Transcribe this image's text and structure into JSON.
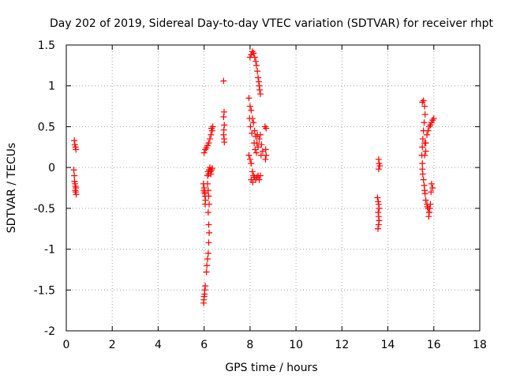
{
  "chart_data": {
    "type": "scatter",
    "title": "Day 202 of 2019, Sidereal Day-to-day VTEC variation (SDTVAR) for receiver rhpt",
    "xlabel": "GPS time / hours",
    "ylabel": "SDTVAR / TECUs",
    "xlim": [
      0,
      18
    ],
    "ylim": [
      -2,
      1.5
    ],
    "xticks": [
      0,
      2,
      4,
      6,
      8,
      10,
      12,
      14,
      16,
      18
    ],
    "yticks": [
      -2,
      -1.5,
      -1,
      -0.5,
      0,
      0.5,
      1,
      1.5
    ],
    "xtick_labels": [
      "0",
      "2",
      "4",
      "6",
      "8",
      "10",
      "12",
      "14",
      "16",
      "18"
    ],
    "ytick_labels": [
      "-2",
      "-1.5",
      "-1",
      "-0.5",
      "0",
      "0.5",
      "1",
      "1.5"
    ],
    "grid": true,
    "marker": "plus",
    "color": "#ff0000",
    "series": [
      {
        "name": "SDTVAR",
        "points": [
          [
            0.35,
            0.33
          ],
          [
            0.37,
            0.28
          ],
          [
            0.4,
            0.25
          ],
          [
            0.42,
            0.22
          ],
          [
            0.33,
            -0.03
          ],
          [
            0.35,
            -0.1
          ],
          [
            0.36,
            -0.17
          ],
          [
            0.38,
            -0.2
          ],
          [
            0.4,
            -0.23
          ],
          [
            0.42,
            -0.25
          ],
          [
            0.39,
            -0.28
          ],
          [
            0.41,
            -0.3
          ],
          [
            0.43,
            -0.33
          ],
          [
            6.0,
            0.18
          ],
          [
            6.05,
            0.22
          ],
          [
            6.1,
            0.24
          ],
          [
            6.15,
            0.27
          ],
          [
            6.2,
            0.3
          ],
          [
            6.25,
            0.35
          ],
          [
            6.3,
            0.4
          ],
          [
            6.35,
            0.45
          ],
          [
            6.32,
            0.48
          ],
          [
            6.38,
            0.5
          ],
          [
            5.97,
            -0.2
          ],
          [
            6.0,
            -0.25
          ],
          [
            6.02,
            -0.3
          ],
          [
            6.04,
            -0.35
          ],
          [
            6.06,
            -0.4
          ],
          [
            6.05,
            -0.45
          ],
          [
            6.03,
            -0.32
          ],
          [
            5.99,
            -0.28
          ],
          [
            6.15,
            -0.1
          ],
          [
            6.18,
            -0.05
          ],
          [
            6.2,
            -0.08
          ],
          [
            6.22,
            -0.03
          ],
          [
            6.25,
            0.0
          ],
          [
            6.28,
            -0.05
          ],
          [
            6.3,
            -0.08
          ],
          [
            6.33,
            -0.03
          ],
          [
            6.35,
            -0.01
          ],
          [
            6.15,
            -0.2
          ],
          [
            6.18,
            -0.28
          ],
          [
            6.2,
            -0.35
          ],
          [
            6.22,
            -0.45
          ],
          [
            6.18,
            -0.55
          ],
          [
            6.2,
            -0.7
          ],
          [
            6.22,
            -0.8
          ],
          [
            6.2,
            -0.92
          ],
          [
            6.18,
            -1.05
          ],
          [
            6.15,
            -1.12
          ],
          [
            6.12,
            -1.2
          ],
          [
            6.1,
            -1.28
          ],
          [
            6.05,
            -1.45
          ],
          [
            6.03,
            -1.5
          ],
          [
            6.02,
            -1.55
          ],
          [
            6.0,
            -1.58
          ],
          [
            5.99,
            -1.62
          ],
          [
            5.98,
            -1.66
          ],
          [
            6.85,
            1.06
          ],
          [
            6.87,
            0.68
          ],
          [
            6.85,
            0.62
          ],
          [
            6.88,
            0.52
          ],
          [
            6.86,
            0.46
          ],
          [
            6.85,
            0.4
          ],
          [
            6.87,
            0.35
          ],
          [
            6.88,
            0.31
          ],
          [
            8.0,
            1.35
          ],
          [
            8.05,
            1.38
          ],
          [
            8.1,
            1.42
          ],
          [
            8.15,
            1.4
          ],
          [
            8.2,
            1.35
          ],
          [
            8.25,
            1.3
          ],
          [
            8.28,
            1.25
          ],
          [
            8.32,
            1.18
          ],
          [
            8.35,
            1.1
          ],
          [
            8.4,
            1.0
          ],
          [
            8.45,
            0.9
          ],
          [
            8.42,
            0.95
          ],
          [
            8.38,
            1.05
          ],
          [
            7.95,
            0.85
          ],
          [
            8.0,
            0.75
          ],
          [
            8.05,
            0.7
          ],
          [
            8.1,
            0.6
          ],
          [
            8.15,
            0.55
          ],
          [
            8.2,
            0.45
          ],
          [
            8.25,
            0.38
          ],
          [
            8.3,
            0.3
          ],
          [
            8.35,
            0.25
          ],
          [
            8.4,
            0.35
          ],
          [
            8.45,
            0.4
          ],
          [
            8.5,
            0.28
          ],
          [
            8.55,
            0.2
          ],
          [
            8.48,
            0.15
          ],
          [
            7.95,
            0.15
          ],
          [
            8.0,
            0.1
          ],
          [
            8.05,
            0.05
          ],
          [
            8.1,
            -0.05
          ],
          [
            8.15,
            -0.1
          ],
          [
            8.2,
            -0.12
          ],
          [
            8.25,
            -0.15
          ],
          [
            8.3,
            -0.12
          ],
          [
            8.35,
            -0.1
          ],
          [
            8.4,
            -0.15
          ],
          [
            8.45,
            -0.1
          ],
          [
            8.05,
            -0.15
          ],
          [
            8.12,
            -0.18
          ],
          [
            7.98,
            0.6
          ],
          [
            8.02,
            0.5
          ],
          [
            8.08,
            0.42
          ],
          [
            8.18,
            0.3
          ],
          [
            8.22,
            0.22
          ],
          [
            8.28,
            0.18
          ],
          [
            8.32,
            0.4
          ],
          [
            8.65,
            0.5
          ],
          [
            8.7,
            0.48
          ],
          [
            8.68,
            0.22
          ],
          [
            8.7,
            0.15
          ],
          [
            8.67,
            0.1
          ],
          [
            13.55,
            -0.37
          ],
          [
            13.58,
            -0.42
          ],
          [
            13.6,
            -0.45
          ],
          [
            13.62,
            -0.5
          ],
          [
            13.58,
            -0.55
          ],
          [
            13.6,
            -0.6
          ],
          [
            13.62,
            -0.65
          ],
          [
            13.6,
            -0.7
          ],
          [
            13.57,
            -0.75
          ],
          [
            13.6,
            0.1
          ],
          [
            13.62,
            0.05
          ],
          [
            13.65,
            0.02
          ],
          [
            13.6,
            -0.02
          ],
          [
            15.5,
            0.8
          ],
          [
            15.55,
            0.82
          ],
          [
            15.6,
            0.75
          ],
          [
            15.62,
            0.65
          ],
          [
            15.58,
            0.55
          ],
          [
            15.55,
            0.45
          ],
          [
            15.52,
            0.35
          ],
          [
            15.5,
            0.25
          ],
          [
            15.48,
            0.15
          ],
          [
            15.5,
            0.05
          ],
          [
            15.5,
            -0.02
          ],
          [
            15.52,
            -0.08
          ],
          [
            15.55,
            -0.15
          ],
          [
            15.58,
            -0.22
          ],
          [
            15.6,
            -0.28
          ],
          [
            15.62,
            -0.32
          ],
          [
            15.65,
            -0.4
          ],
          [
            15.7,
            -0.45
          ],
          [
            15.75,
            -0.5
          ],
          [
            15.8,
            -0.55
          ],
          [
            15.78,
            -0.6
          ],
          [
            15.72,
            -0.48
          ],
          [
            15.65,
            0.3
          ],
          [
            15.7,
            0.4
          ],
          [
            15.75,
            0.45
          ],
          [
            15.8,
            0.5
          ],
          [
            15.85,
            0.52
          ],
          [
            15.9,
            0.55
          ],
          [
            15.95,
            0.58
          ],
          [
            16.0,
            0.6
          ],
          [
            15.9,
            -0.2
          ],
          [
            15.95,
            -0.25
          ],
          [
            15.88,
            -0.3
          ],
          [
            15.85,
            -0.45
          ],
          [
            15.82,
            -0.5
          ],
          [
            15.8,
            -0.55
          ],
          [
            15.6,
            0.15
          ],
          [
            15.65,
            0.2
          ],
          [
            15.6,
            0.3
          ]
        ]
      }
    ]
  }
}
